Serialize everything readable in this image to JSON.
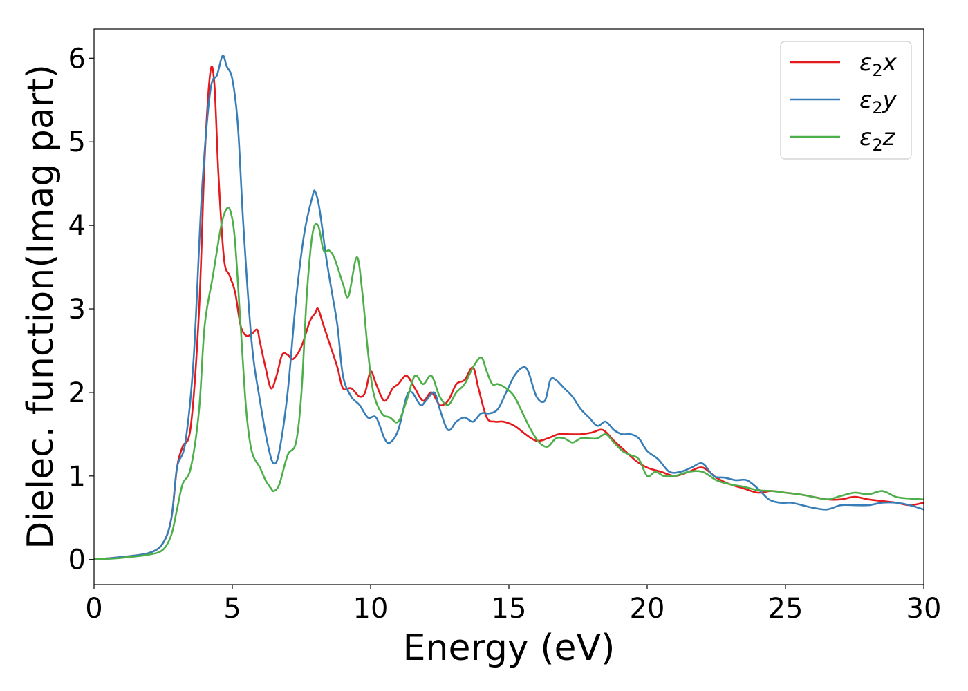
{
  "chart_data": {
    "type": "line",
    "xlabel": "Energy (eV)",
    "ylabel": "Dielec. function(Imag part)",
    "xlim": [
      0,
      30
    ],
    "ylim": [
      -0.3,
      6.35
    ],
    "xticks": [
      "0",
      "5",
      "10",
      "15",
      "20",
      "25",
      "30"
    ],
    "yticks": [
      "0",
      "1",
      "2",
      "3",
      "4",
      "5",
      "6"
    ],
    "grid": false,
    "legend_position": "top-right",
    "series": [
      {
        "name": "ε₂x",
        "legend": {
          "base": "ε",
          "sub": "2",
          "suffix": "x"
        },
        "color": "#e41a1c",
        "x": [
          0,
          1,
          2,
          2.5,
          2.8,
          3.0,
          3.2,
          3.5,
          3.8,
          4.0,
          4.2,
          4.35,
          4.5,
          4.7,
          4.9,
          5.1,
          5.3,
          5.5,
          5.7,
          5.9,
          6.0,
          6.2,
          6.4,
          6.6,
          6.8,
          7.0,
          7.2,
          7.5,
          7.8,
          8.0,
          8.1,
          8.3,
          8.5,
          8.8,
          9.0,
          9.3,
          9.6,
          9.8,
          10.0,
          10.2,
          10.5,
          10.8,
          11.0,
          11.3,
          11.6,
          11.9,
          12.2,
          12.5,
          12.8,
          13.1,
          13.4,
          13.7,
          13.9,
          14.2,
          14.5,
          14.8,
          15.2,
          15.6,
          16.0,
          16.4,
          16.8,
          17.2,
          17.6,
          18.0,
          18.4,
          18.8,
          19.2,
          19.6,
          20.0,
          20.5,
          21.0,
          21.5,
          22.0,
          22.5,
          23.0,
          23.5,
          24.0,
          24.5,
          25.0,
          25.5,
          26.0,
          26.5,
          27.0,
          27.5,
          28.0,
          28.5,
          29.0,
          29.5,
          30.0
        ],
        "y": [
          0.0,
          0.03,
          0.08,
          0.2,
          0.5,
          1.1,
          1.35,
          1.6,
          3.0,
          4.8,
          5.82,
          5.7,
          4.6,
          3.6,
          3.4,
          3.2,
          2.8,
          2.68,
          2.7,
          2.75,
          2.6,
          2.3,
          2.05,
          2.2,
          2.45,
          2.45,
          2.4,
          2.55,
          2.85,
          2.95,
          3.0,
          2.8,
          2.6,
          2.3,
          2.05,
          2.05,
          1.95,
          2.0,
          2.25,
          2.1,
          1.9,
          2.05,
          2.1,
          2.2,
          2.05,
          1.9,
          2.0,
          1.85,
          1.9,
          2.1,
          2.15,
          2.3,
          2.05,
          1.7,
          1.65,
          1.65,
          1.6,
          1.5,
          1.42,
          1.45,
          1.5,
          1.5,
          1.5,
          1.52,
          1.55,
          1.42,
          1.3,
          1.18,
          1.1,
          1.05,
          1.0,
          1.05,
          1.1,
          0.98,
          0.9,
          0.85,
          0.8,
          0.82,
          0.8,
          0.78,
          0.75,
          0.72,
          0.72,
          0.75,
          0.72,
          0.7,
          0.68,
          0.65,
          0.68
        ]
      },
      {
        "name": "ε₂y",
        "legend": {
          "base": "ε",
          "sub": "2",
          "suffix": "y"
        },
        "color": "#377eb8",
        "x": [
          0,
          1,
          2,
          2.5,
          2.8,
          3.0,
          3.3,
          3.6,
          3.9,
          4.2,
          4.45,
          4.65,
          4.8,
          5.0,
          5.2,
          5.4,
          5.7,
          6.0,
          6.3,
          6.5,
          6.7,
          7.0,
          7.3,
          7.6,
          7.9,
          8.0,
          8.15,
          8.4,
          8.6,
          8.8,
          9.0,
          9.3,
          9.6,
          9.9,
          10.2,
          10.5,
          10.7,
          11.0,
          11.3,
          11.5,
          11.8,
          12.0,
          12.3,
          12.5,
          12.8,
          13.1,
          13.4,
          13.7,
          14.0,
          14.3,
          14.6,
          14.9,
          15.2,
          15.5,
          15.7,
          16.0,
          16.3,
          16.5,
          16.7,
          17.0,
          17.3,
          17.6,
          17.9,
          18.2,
          18.5,
          18.8,
          19.1,
          19.4,
          19.7,
          20.0,
          20.4,
          20.8,
          21.2,
          21.6,
          22.0,
          22.4,
          22.8,
          23.2,
          23.6,
          24.0,
          24.4,
          24.8,
          25.2,
          25.6,
          26.0,
          26.5,
          27.0,
          27.5,
          28.0,
          28.5,
          29.0,
          29.5,
          30.0
        ],
        "y": [
          0.0,
          0.03,
          0.08,
          0.2,
          0.5,
          1.1,
          1.4,
          2.4,
          4.4,
          5.6,
          5.8,
          6.03,
          5.9,
          5.75,
          5.2,
          4.0,
          2.6,
          1.9,
          1.35,
          1.15,
          1.3,
          2.0,
          3.1,
          3.9,
          4.35,
          4.4,
          4.2,
          3.6,
          3.2,
          2.8,
          2.2,
          1.95,
          1.85,
          1.7,
          1.7,
          1.45,
          1.4,
          1.55,
          1.95,
          2.0,
          1.85,
          1.9,
          2.0,
          1.8,
          1.55,
          1.65,
          1.7,
          1.65,
          1.75,
          1.75,
          1.8,
          2.0,
          2.2,
          2.3,
          2.25,
          1.95,
          1.9,
          2.15,
          2.15,
          2.05,
          1.95,
          1.8,
          1.7,
          1.6,
          1.65,
          1.55,
          1.5,
          1.5,
          1.45,
          1.3,
          1.2,
          1.05,
          1.05,
          1.1,
          1.15,
          1.0,
          0.98,
          0.95,
          0.95,
          0.85,
          0.72,
          0.68,
          0.68,
          0.65,
          0.62,
          0.6,
          0.65,
          0.65,
          0.65,
          0.68,
          0.68,
          0.65,
          0.6
        ]
      },
      {
        "name": "ε₂z",
        "legend": {
          "base": "ε",
          "sub": "2",
          "suffix": "z"
        },
        "color": "#4daf4a",
        "x": [
          0,
          1,
          2,
          2.5,
          2.8,
          3.0,
          3.2,
          3.5,
          3.8,
          4.0,
          4.3,
          4.6,
          4.8,
          4.95,
          5.1,
          5.3,
          5.5,
          5.7,
          6.0,
          6.2,
          6.4,
          6.5,
          6.7,
          7.0,
          7.3,
          7.5,
          7.7,
          7.9,
          8.1,
          8.3,
          8.5,
          8.7,
          9.0,
          9.2,
          9.5,
          9.7,
          9.9,
          10.1,
          10.4,
          10.7,
          11.0,
          11.3,
          11.6,
          11.9,
          12.2,
          12.5,
          12.8,
          13.1,
          13.4,
          13.7,
          14.0,
          14.2,
          14.4,
          14.6,
          14.9,
          15.2,
          15.5,
          15.8,
          16.1,
          16.4,
          16.7,
          17.0,
          17.3,
          17.6,
          17.9,
          18.2,
          18.5,
          18.8,
          19.1,
          19.4,
          19.7,
          20.0,
          20.3,
          20.6,
          21.0,
          21.5,
          22.0,
          22.5,
          23.0,
          23.5,
          24.0,
          24.5,
          25.0,
          25.5,
          26.0,
          26.5,
          27.0,
          27.5,
          28.0,
          28.5,
          29.0,
          29.5,
          30.0
        ],
        "y": [
          0.0,
          0.02,
          0.06,
          0.12,
          0.3,
          0.6,
          0.9,
          1.1,
          1.8,
          2.8,
          3.4,
          4.0,
          4.2,
          4.15,
          3.8,
          2.8,
          1.8,
          1.3,
          1.1,
          0.95,
          0.85,
          0.82,
          0.9,
          1.25,
          1.4,
          2.0,
          3.2,
          3.9,
          4.0,
          3.7,
          3.7,
          3.6,
          3.3,
          3.15,
          3.62,
          3.2,
          2.5,
          2.0,
          1.75,
          1.7,
          1.65,
          1.9,
          2.2,
          2.1,
          2.2,
          1.95,
          1.85,
          2.0,
          2.1,
          2.3,
          2.42,
          2.25,
          2.1,
          2.1,
          2.05,
          1.95,
          1.75,
          1.55,
          1.4,
          1.35,
          1.45,
          1.45,
          1.4,
          1.45,
          1.45,
          1.45,
          1.5,
          1.4,
          1.3,
          1.25,
          1.2,
          1.0,
          1.05,
          1.0,
          1.0,
          1.05,
          1.05,
          0.95,
          0.9,
          0.87,
          0.83,
          0.82,
          0.8,
          0.78,
          0.75,
          0.72,
          0.76,
          0.8,
          0.78,
          0.82,
          0.75,
          0.73,
          0.72
        ]
      }
    ]
  }
}
